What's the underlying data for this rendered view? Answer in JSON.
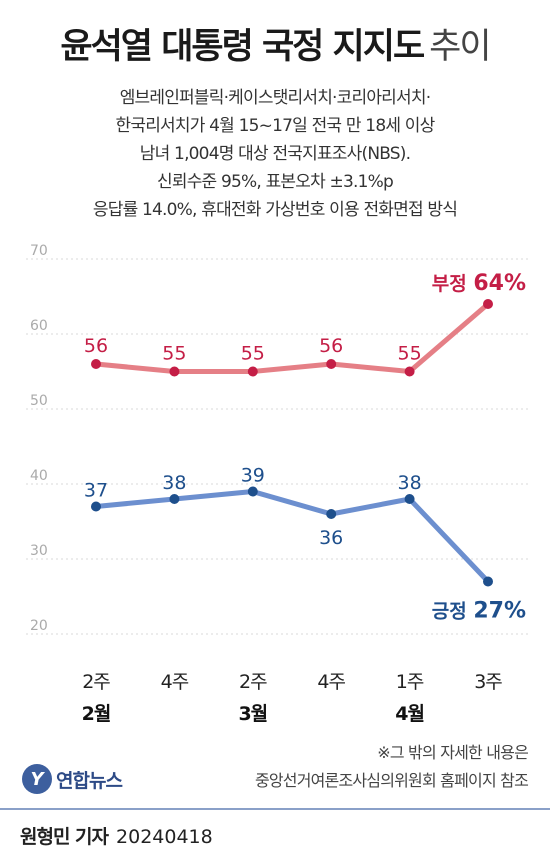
{
  "title": {
    "main": "윤석열 대통령 국정 지지도",
    "sub": "추이"
  },
  "description": [
    "엠브레인퍼블릭·케이스탯리서치·코리아리서치·",
    "한국리서치가 4월 15~17일 전국 만 18세 이상",
    "남녀 1,004명 대상 전국지표조사(NBS).",
    "신뢰수준 95%, 표본오차 ±3.1%p",
    "응답률 14.0%, 휴대전화 가상번호 이용 전화면접 방식"
  ],
  "chart_data": {
    "type": "line",
    "categories": [
      "2주",
      "4주",
      "2주",
      "4주",
      "1주",
      "3주"
    ],
    "month_labels": [
      {
        "index": 0,
        "label": "2월"
      },
      {
        "index": 2,
        "label": "3월"
      },
      {
        "index": 4,
        "label": "4월"
      }
    ],
    "ylim": [
      20,
      70
    ],
    "yticks": [
      20,
      30,
      40,
      50,
      60,
      70
    ],
    "grid": true,
    "series": [
      {
        "name": "부정",
        "values": [
          56,
          55,
          55,
          56,
          55,
          64
        ],
        "color": "#e57f86",
        "label_color": "#c41e46",
        "final_label": "64%"
      },
      {
        "name": "긍정",
        "values": [
          37,
          38,
          39,
          36,
          38,
          27
        ],
        "color": "#6c8fcf",
        "label_color": "#1e4f8c",
        "final_label": "27%"
      }
    ]
  },
  "note": [
    "※그 밖의 자세한 내용은",
    "중앙선거여론조사심의위원회 홈페이지 참조"
  ],
  "logo": {
    "mark": "Y",
    "text": "연합뉴스"
  },
  "byline": {
    "reporter": "원형민 기자",
    "date": "20240418"
  },
  "colors": {
    "negative": "#c41e46",
    "positive": "#1e4f8c",
    "grid": "#d9d9d9"
  }
}
